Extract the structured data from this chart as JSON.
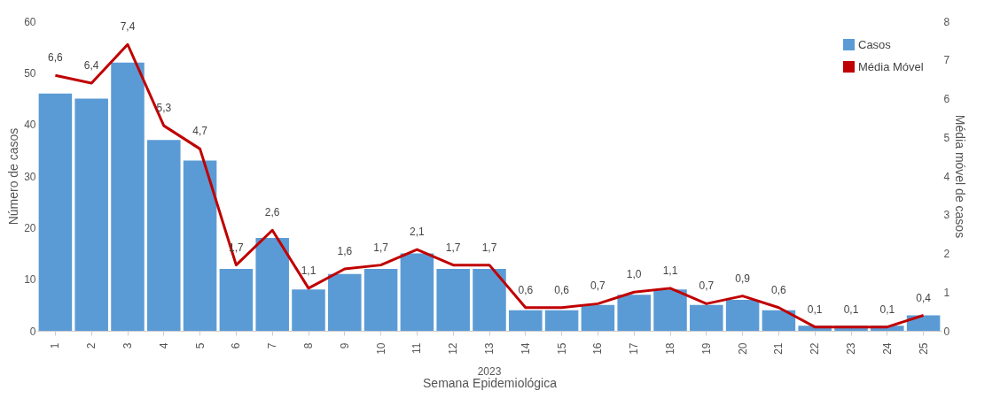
{
  "chart_data": {
    "type": "bar",
    "xlabel": "Semana Epidemiológica",
    "ylabel": "Número de casos",
    "y2label": "Média móvel de casos",
    "annotations": [
      "2023"
    ],
    "categories": [
      "1",
      "2",
      "3",
      "4",
      "5",
      "6",
      "7",
      "8",
      "9",
      "10",
      "11",
      "12",
      "13",
      "14",
      "15",
      "16",
      "17",
      "18",
      "19",
      "20",
      "21",
      "22",
      "23",
      "24",
      "25"
    ],
    "series": [
      {
        "name": "Casos",
        "color": "#5b9bd5",
        "values": [
          46,
          45,
          52,
          37,
          33,
          12,
          18,
          8,
          11,
          12,
          15,
          12,
          12,
          4,
          4,
          5,
          7,
          8,
          5,
          6,
          4,
          1,
          1,
          1,
          3
        ]
      },
      {
        "name": "Média Móvel",
        "type": "line",
        "axis": "y2",
        "color": "#c00000",
        "values": [
          6.6,
          6.4,
          7.4,
          5.3,
          4.7,
          1.7,
          2.6,
          1.1,
          1.6,
          1.7,
          2.1,
          1.7,
          1.7,
          0.6,
          0.6,
          0.7,
          1.0,
          1.1,
          0.7,
          0.9,
          0.6,
          0.1,
          0.1,
          0.1,
          0.4
        ],
        "value_labels": [
          "6,6",
          "6,4",
          "7,4",
          "5,3",
          "4,7",
          "1,7",
          "2,6",
          "1,1",
          "1,6",
          "1,7",
          "2,1",
          "1,7",
          "1,7",
          "0,6",
          "0,6",
          "0,7",
          "1,0",
          "1,1",
          "0,7",
          "0,9",
          "0,6",
          "0,1",
          "0,1",
          "0,1",
          "0,4"
        ]
      }
    ],
    "ylim": [
      0,
      60
    ],
    "yticks": [
      0,
      10,
      20,
      30,
      40,
      50,
      60
    ],
    "y2lim": [
      0,
      8
    ],
    "y2ticks": [
      0,
      1,
      2,
      3,
      4,
      5,
      6,
      7,
      8
    ],
    "grid": false,
    "legend": "top right"
  }
}
